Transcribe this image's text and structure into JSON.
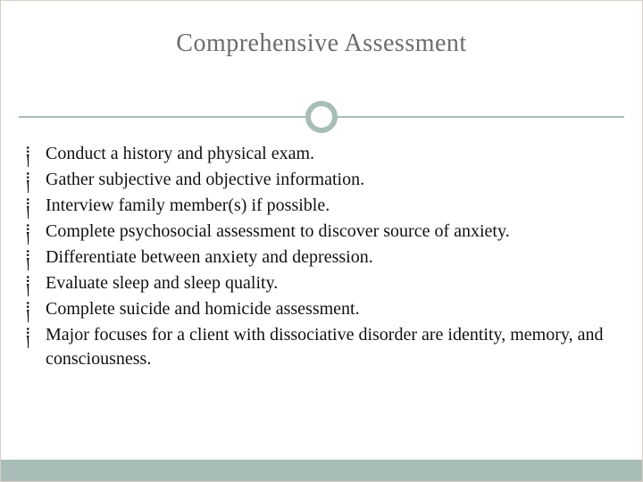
{
  "slide": {
    "title": "Comprehensive Assessment",
    "title_color": "#6b6b6b",
    "title_fontsize": 28,
    "accent_color": "#a8bdb7",
    "background_color": "#ffffff",
    "text_color": "#111111",
    "bullet_glyph": "༐",
    "bullet_fontsize": 20,
    "body_fontsize": 20,
    "bullets": [
      "Conduct a history and physical exam.",
      "Gather subjective and objective information.",
      "Interview family member(s) if possible.",
      "Complete psychosocial assessment to discover source of anxiety.",
      "Differentiate between anxiety and depression.",
      "Evaluate sleep and sleep quality.",
      "Complete suicide and homicide assessment.",
      "Major focuses for a client with dissociative disorder are identity, memory, and consciousness."
    ]
  }
}
